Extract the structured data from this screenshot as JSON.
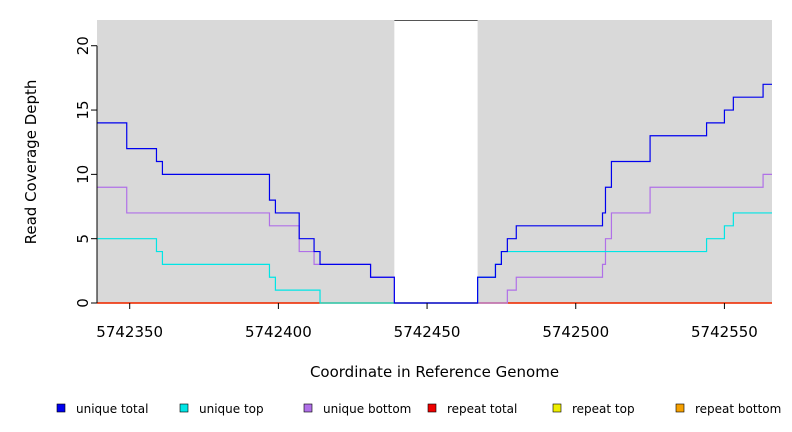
{
  "chart_data": {
    "type": "line",
    "title": "",
    "xlabel": "Coordinate in Reference Genome",
    "ylabel": "Read Coverage Depth",
    "xlim": [
      5742339,
      5742566
    ],
    "ylim": [
      0,
      22
    ],
    "x_ticks": [
      5742350,
      5742400,
      5742450,
      5742500,
      5742550
    ],
    "y_ticks": [
      0,
      5,
      10,
      15,
      20
    ],
    "gap_region": [
      5742439,
      5742467
    ],
    "grid": false,
    "legend_position": "bottom",
    "series": [
      {
        "name": "unique total",
        "color": "#0000ee",
        "steps": [
          [
            5742339,
            14
          ],
          [
            5742349,
            12
          ],
          [
            5742359,
            11
          ],
          [
            5742361,
            10
          ],
          [
            5742397,
            8
          ],
          [
            5742399,
            7
          ],
          [
            5742407,
            5
          ],
          [
            5742412,
            4
          ],
          [
            5742414,
            3
          ],
          [
            5742431,
            2
          ],
          [
            5742439,
            0
          ],
          [
            5742467,
            2
          ],
          [
            5742473,
            3
          ],
          [
            5742475,
            4
          ],
          [
            5742477,
            5
          ],
          [
            5742480,
            6
          ],
          [
            5742509,
            7
          ],
          [
            5742510,
            9
          ],
          [
            5742512,
            11
          ],
          [
            5742525,
            13
          ],
          [
            5742544,
            14
          ],
          [
            5742550,
            15
          ],
          [
            5742553,
            16
          ],
          [
            5742563,
            17
          ],
          [
            5742566,
            17
          ]
        ]
      },
      {
        "name": "unique top",
        "color": "#00e5e5",
        "steps": [
          [
            5742339,
            5
          ],
          [
            5742359,
            4
          ],
          [
            5742361,
            3
          ],
          [
            5742397,
            2
          ],
          [
            5742399,
            1
          ],
          [
            5742414,
            0
          ],
          [
            5742467,
            2
          ],
          [
            5742473,
            3
          ],
          [
            5742475,
            4
          ],
          [
            5742544,
            5
          ],
          [
            5742550,
            6
          ],
          [
            5742553,
            7
          ],
          [
            5742566,
            7
          ]
        ]
      },
      {
        "name": "unique bottom",
        "color": "#b070e8",
        "steps": [
          [
            5742339,
            9
          ],
          [
            5742349,
            7
          ],
          [
            5742397,
            6
          ],
          [
            5742407,
            4
          ],
          [
            5742412,
            3
          ],
          [
            5742431,
            2
          ],
          [
            5742439,
            0
          ],
          [
            5742477,
            1
          ],
          [
            5742480,
            2
          ],
          [
            5742509,
            3
          ],
          [
            5742510,
            5
          ],
          [
            5742512,
            7
          ],
          [
            5742525,
            9
          ],
          [
            5742563,
            10
          ],
          [
            5742566,
            10
          ]
        ]
      },
      {
        "name": "repeat total",
        "color": "#ee0000",
        "steps": [
          [
            5742339,
            0
          ],
          [
            5742566,
            0
          ]
        ]
      },
      {
        "name": "repeat top",
        "color": "#eeee00",
        "steps": [
          [
            5742339,
            0
          ],
          [
            5742566,
            0
          ]
        ]
      },
      {
        "name": "repeat bottom",
        "color": "#f5a000",
        "steps": [
          [
            5742339,
            0
          ],
          [
            5742566,
            0
          ]
        ]
      }
    ]
  }
}
